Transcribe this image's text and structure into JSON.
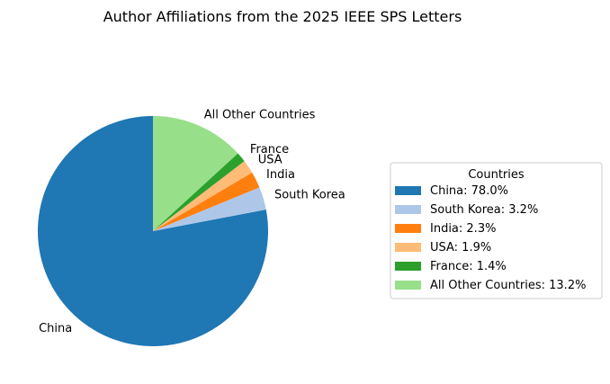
{
  "chart_data": {
    "type": "pie",
    "title": "Author Affiliations from the 2025 IEEE SPS Letters",
    "legend": {
      "title": "Countries",
      "placement": "right",
      "entries": [
        "China: 78.0%",
        "South Korea: 3.2%",
        "India: 2.3%",
        "USA: 1.9%",
        "France: 1.4%",
        "All Other Countries: 13.2%"
      ]
    },
    "slices": [
      {
        "label": "China",
        "value": 78.0,
        "color": "#1f77b4"
      },
      {
        "label": "South Korea",
        "value": 3.2,
        "color": "#aec7e8"
      },
      {
        "label": "India",
        "value": 2.3,
        "color": "#ff7f0e"
      },
      {
        "label": "USA",
        "value": 1.9,
        "color": "#ffbb78"
      },
      {
        "label": "France",
        "value": 1.4,
        "color": "#2ca02c"
      },
      {
        "label": "All Other Countries",
        "value": 13.2,
        "color": "#98df8a"
      }
    ]
  }
}
